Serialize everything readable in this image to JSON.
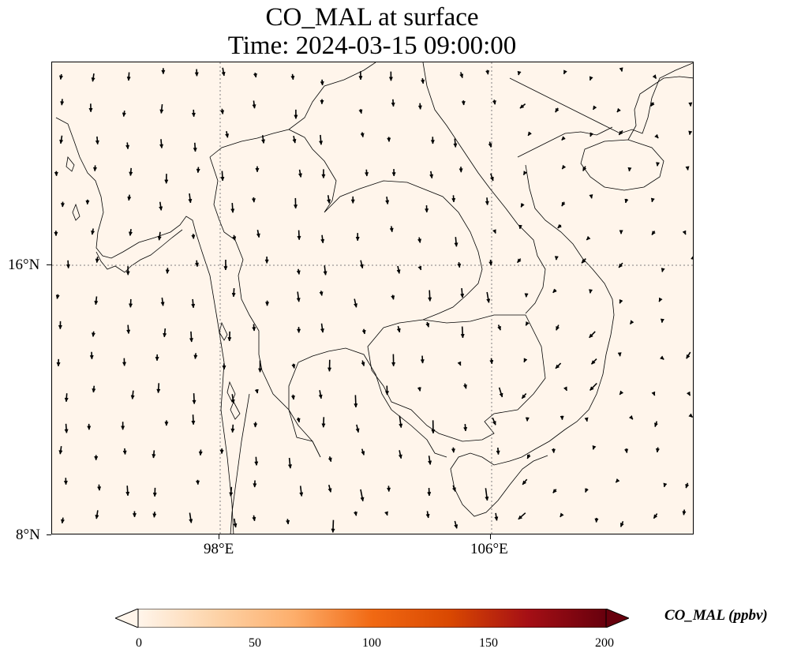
{
  "title": {
    "line1": "CO_MAL at surface",
    "line2": "Time: 2024-03-15 09:00:00"
  },
  "map": {
    "background_color": "#fff5eb",
    "coastline_color": "#000000",
    "gridline_color": "#808080",
    "gridlines": "dotted",
    "lon_ticks": [
      "98°E",
      "106°E"
    ],
    "lat_ticks": [
      "16°N",
      "8°N"
    ],
    "vector_field": "wind-arrows"
  },
  "colorbar": {
    "label": "CO_MAL (ppbv)",
    "ticks": [
      "0",
      "50",
      "100",
      "150",
      "200"
    ],
    "min": 0,
    "max": 200,
    "extend": "both",
    "colors": [
      "#fff5eb",
      "#fdd3a8",
      "#fdae6b",
      "#f16913",
      "#d94801",
      "#a50f15",
      "#67000d"
    ]
  }
}
